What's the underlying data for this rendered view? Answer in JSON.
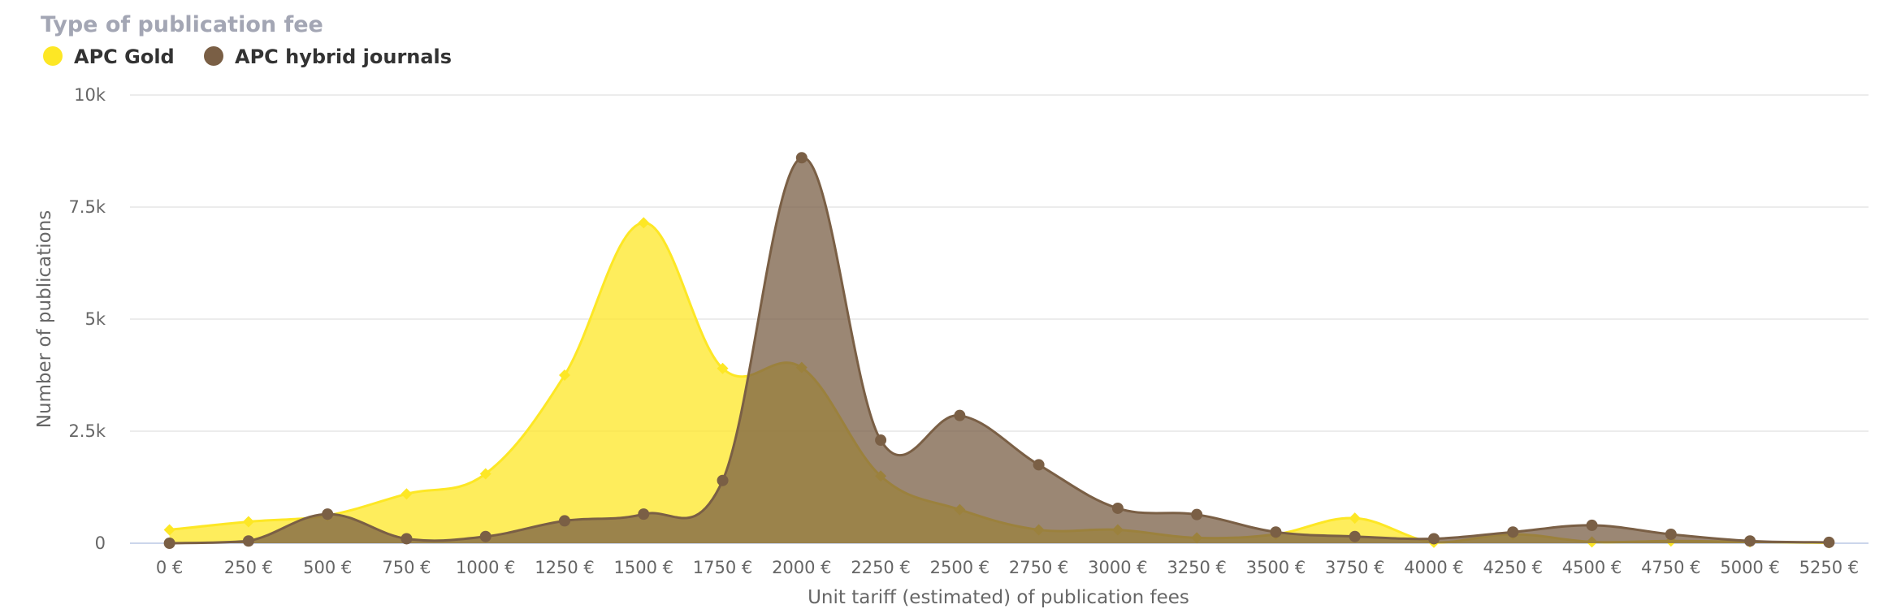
{
  "chart_data": {
    "type": "area",
    "title": "Type of publication fee",
    "xlabel": "Unit tariff (estimated) of publication fees",
    "ylabel": "Number of publications",
    "categories": [
      "0 €",
      "250 €",
      "500 €",
      "750 €",
      "1000 €",
      "1250 €",
      "1500 €",
      "1750 €",
      "2000 €",
      "2250 €",
      "2500 €",
      "2750 €",
      "3000 €",
      "3250 €",
      "3500 €",
      "3750 €",
      "4000 €",
      "4250 €",
      "4500 €",
      "4750 €",
      "5000 €",
      "5250 €"
    ],
    "yticks": [
      "0",
      "2.5k",
      "5k",
      "7.5k",
      "10k"
    ],
    "ylim": [
      0,
      10000
    ],
    "grid": true,
    "legend_position": "top-left",
    "series": [
      {
        "name": "APC Gold",
        "color": "#fde725",
        "marker": "diamond",
        "values": [
          300,
          480,
          620,
          1100,
          1550,
          3750,
          7150,
          3900,
          3920,
          1500,
          750,
          300,
          300,
          120,
          200,
          560,
          20,
          200,
          30,
          50,
          30,
          10
        ]
      },
      {
        "name": "APC hybrid journals",
        "color": "#7a5f45",
        "marker": "circle",
        "values": [
          0,
          50,
          650,
          100,
          150,
          500,
          650,
          1400,
          8600,
          2300,
          2850,
          1750,
          780,
          640,
          250,
          150,
          100,
          250,
          400,
          200,
          50,
          20
        ]
      }
    ]
  }
}
